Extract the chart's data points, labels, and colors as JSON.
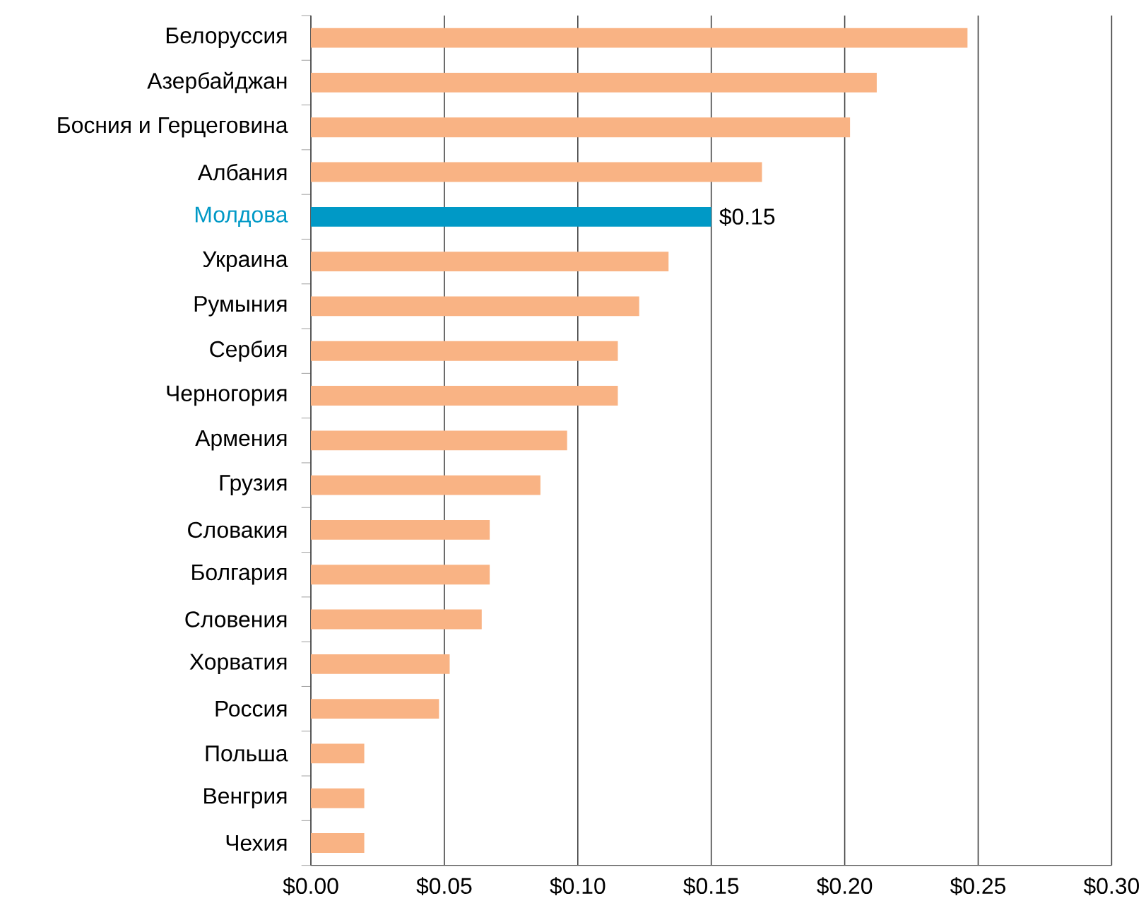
{
  "chart_data": {
    "type": "bar",
    "orientation": "horizontal",
    "categories": [
      "Белоруссия",
      "Азербайджан",
      "Босния и Герцеговина",
      "Албания",
      "Молдова",
      "Украина",
      "Румыния",
      "Сербия",
      "Черногория",
      "Армения",
      "Грузия",
      "Словакия",
      "Болгария",
      "Словения",
      "Хорватия",
      "Россия",
      "Польша",
      "Венгрия",
      "Чехия"
    ],
    "values": [
      0.246,
      0.212,
      0.202,
      0.169,
      0.15,
      0.134,
      0.123,
      0.115,
      0.115,
      0.096,
      0.086,
      0.067,
      0.067,
      0.064,
      0.052,
      0.048,
      0.02,
      0.02,
      0.02
    ],
    "colors": [
      "#f9b384",
      "#f9b384",
      "#f9b384",
      "#f9b384",
      "#0099c6",
      "#f9b384",
      "#f9b384",
      "#f9b384",
      "#f9b384",
      "#f9b384",
      "#f9b384",
      "#f9b384",
      "#f9b384",
      "#f9b384",
      "#f9b384",
      "#f9b384",
      "#f9b384",
      "#f9b384",
      "#f9b384"
    ],
    "value_labels": [
      null,
      null,
      null,
      null,
      "$0.15",
      null,
      null,
      null,
      null,
      null,
      null,
      null,
      null,
      null,
      null,
      null,
      null,
      null,
      null
    ],
    "xlim": [
      0,
      0.3
    ],
    "xticks": [
      {
        "value": 0,
        "label": "$0.00"
      },
      {
        "value": 0.05,
        "label": "$0.05"
      },
      {
        "value": 0.1,
        "label": "$0.10"
      },
      {
        "value": 0.15,
        "label": "$0.15"
      },
      {
        "value": 0.2,
        "label": "$0.20"
      },
      {
        "value": 0.25,
        "label": "$0.25"
      },
      {
        "value": 0.3,
        "label": "$0.30"
      }
    ],
    "grid": "x"
  }
}
